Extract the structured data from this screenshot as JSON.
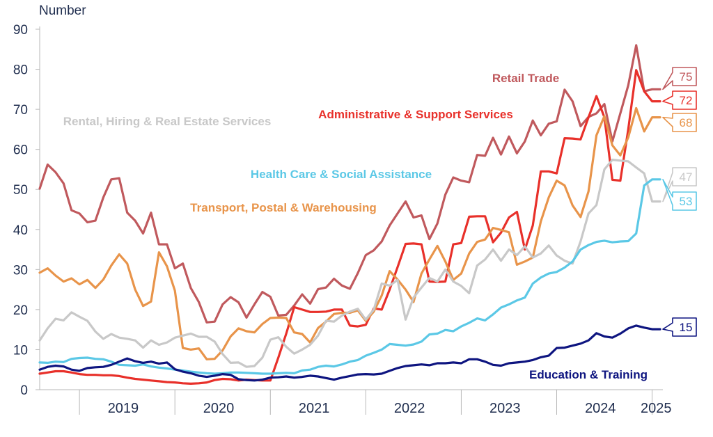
{
  "chart_data": {
    "type": "line",
    "ylabel": "Number",
    "ylim": [
      0,
      90
    ],
    "yticks": [
      0,
      10,
      20,
      30,
      40,
      50,
      60,
      70,
      80,
      90
    ],
    "x_start": "2018-08",
    "x_end": "2025-06",
    "year_labels": [
      "2019",
      "2020",
      "2021",
      "2022",
      "2023",
      "2024",
      "2025"
    ],
    "legend": "inline labels",
    "grid": false,
    "series": [
      {
        "name": "Retail Trade",
        "color": "#c0595d",
        "end_value": "75",
        "values": [
          50.2,
          56.2,
          54.3,
          51.5,
          44.8,
          44.0,
          41.8,
          42.2,
          48.0,
          52.5,
          52.8,
          44.2,
          42.2,
          39.0,
          44.2,
          36.3,
          36.3,
          30.3,
          31.5,
          25.4,
          21.9,
          16.8,
          17.0,
          21.3,
          23.1,
          21.8,
          18.0,
          21.3,
          24.4,
          23.2,
          18.5,
          18.7,
          21.0,
          23.8,
          21.5,
          25.1,
          25.5,
          27.7,
          26.0,
          25.2,
          29.1,
          33.6,
          34.8,
          37.0,
          41.0,
          44.0,
          47.0,
          43.0,
          43.5,
          37.6,
          41.5,
          48.7,
          53.0,
          52.2,
          51.8,
          58.6,
          58.4,
          62.9,
          58.7,
          63.2,
          59.0,
          62.0,
          67.2,
          63.5,
          66.4,
          67.0,
          74.9,
          72.0,
          65.8,
          68.1,
          69.0,
          71.3,
          62.0,
          69.0,
          76.0,
          86.0,
          74.5,
          75.0,
          75.0
        ]
      },
      {
        "name": "Administrative & Support Services",
        "color": "#e8302a",
        "end_value": "72",
        "values": [
          4.0,
          4.3,
          4.6,
          4.6,
          4.3,
          3.9,
          3.7,
          3.7,
          3.6,
          3.6,
          3.4,
          3.0,
          2.7,
          2.5,
          2.3,
          2.1,
          1.9,
          1.8,
          1.6,
          1.5,
          1.6,
          1.8,
          2.4,
          2.7,
          2.6,
          2.3,
          2.5,
          2.4,
          2.3,
          2.3,
          8.0,
          14.0,
          20.6,
          20.0,
          19.4,
          19.4,
          19.5,
          20.0,
          20.0,
          16.0,
          15.8,
          16.2,
          20.3,
          20.0,
          25.0,
          30.6,
          36.4,
          36.5,
          36.3,
          27.0,
          26.9,
          27.0,
          36.3,
          36.6,
          43.2,
          43.3,
          43.3,
          36.8,
          39.2,
          43.0,
          44.4,
          35.0,
          41.0,
          54.5,
          54.5,
          54.0,
          62.8,
          62.7,
          62.5,
          68.0,
          73.3,
          68.0,
          52.4,
          52.2,
          65.0,
          79.8,
          74.5,
          72.0,
          72.0
        ]
      },
      {
        "name": "Transport, Postal & Warehousing",
        "color": "#e8944a",
        "end_value": "68",
        "values": [
          29.2,
          30.3,
          28.5,
          27.0,
          27.8,
          26.3,
          27.4,
          25.4,
          27.5,
          31.0,
          33.8,
          31.5,
          25.0,
          20.9,
          22.0,
          34.3,
          30.8,
          24.7,
          10.4,
          10.0,
          10.3,
          7.6,
          7.7,
          9.8,
          13.3,
          15.3,
          14.6,
          14.3,
          16.4,
          17.9,
          18.0,
          17.9,
          14.3,
          13.9,
          11.8,
          15.4,
          17.0,
          18.9,
          19.2,
          19.2,
          19.8,
          17.2,
          19.5,
          23.5,
          29.6,
          27.5,
          25.0,
          21.9,
          29.0,
          32.5,
          35.9,
          32.0,
          27.4,
          29.0,
          34.0,
          36.9,
          37.5,
          40.4,
          39.9,
          39.3,
          31.2,
          32.0,
          33.0,
          42.0,
          48.0,
          52.2,
          51.0,
          46.0,
          43.1,
          49.5,
          63.5,
          68.3,
          61.0,
          58.5,
          63.0,
          70.3,
          64.5,
          68.0,
          68.0
        ]
      },
      {
        "name": "Rental, Hiring & Real Estate Services",
        "color": "#c8c8c8",
        "end_value": "47",
        "values": [
          12.3,
          15.3,
          17.7,
          17.3,
          19.3,
          18.2,
          17.2,
          14.5,
          12.7,
          13.9,
          13.0,
          12.7,
          12.3,
          10.5,
          12.3,
          11.2,
          11.8,
          13.0,
          13.5,
          14.0,
          13.2,
          13.2,
          12.0,
          8.9,
          6.7,
          6.8,
          5.7,
          5.9,
          8.0,
          12.5,
          13.1,
          10.7,
          9.0,
          10.0,
          11.2,
          13.5,
          17.2,
          17.0,
          18.5,
          19.5,
          20.2,
          17.5,
          20.0,
          26.5,
          26.0,
          27.4,
          17.5,
          23.0,
          25.5,
          27.9,
          27.0,
          30.0,
          27.0,
          25.9,
          24.1,
          31.0,
          32.5,
          35.0,
          32.2,
          35.0,
          33.6,
          35.8,
          33.0,
          34.0,
          36.0,
          33.5,
          32.2,
          31.5,
          37.0,
          44.0,
          46.1,
          55.0,
          57.4,
          57.2,
          57.0,
          55.5,
          54.0,
          47.0,
          47.0
        ]
      },
      {
        "name": "Health Care & Social Assistance",
        "color": "#5bc8e6",
        "end_value": "53",
        "values": [
          6.8,
          6.7,
          7.0,
          6.9,
          7.7,
          7.9,
          8.0,
          7.7,
          7.6,
          7.0,
          6.2,
          6.1,
          6.0,
          6.3,
          5.8,
          5.5,
          5.3,
          5.0,
          4.8,
          4.5,
          4.3,
          4.1,
          4.0,
          4.1,
          4.3,
          4.3,
          4.2,
          4.1,
          4.0,
          4.0,
          4.1,
          4.2,
          4.1,
          4.8,
          5.0,
          5.7,
          6.0,
          5.8,
          6.3,
          7.0,
          7.4,
          8.5,
          9.2,
          10.0,
          11.4,
          11.2,
          11.0,
          11.3,
          12.0,
          13.8,
          14.0,
          14.9,
          14.6,
          15.8,
          16.7,
          17.8,
          17.3,
          18.8,
          20.5,
          21.3,
          22.3,
          23.0,
          26.5,
          28.0,
          29.0,
          29.4,
          30.5,
          32.0,
          35.0,
          36.1,
          36.9,
          37.2,
          36.8,
          37.0,
          37.1,
          39.0,
          51.0,
          52.5,
          52.5
        ]
      },
      {
        "name": "Education & Training",
        "color": "#0e1580",
        "end_value": "15",
        "values": [
          5.0,
          5.7,
          6.0,
          5.8,
          5.0,
          4.7,
          5.4,
          5.6,
          5.7,
          6.2,
          7.0,
          7.8,
          7.1,
          6.7,
          7.0,
          6.5,
          6.8,
          5.1,
          4.5,
          4.1,
          3.5,
          3.2,
          3.5,
          3.9,
          3.7,
          2.6,
          2.4,
          2.3,
          2.5,
          3.0,
          3.1,
          3.3,
          3.0,
          3.2,
          3.5,
          3.3,
          2.9,
          2.5,
          3.0,
          3.4,
          3.8,
          3.9,
          3.8,
          4.0,
          4.7,
          5.4,
          5.9,
          6.1,
          6.3,
          6.1,
          6.6,
          6.6,
          6.8,
          6.6,
          7.6,
          7.6,
          7.0,
          6.2,
          6.0,
          6.6,
          6.8,
          7.0,
          7.4,
          8.1,
          8.5,
          10.4,
          10.5,
          11.0,
          11.5,
          12.3,
          14.1,
          13.3,
          13.0,
          14.0,
          15.3,
          16.0,
          15.5,
          15.1,
          15.1
        ]
      }
    ]
  }
}
